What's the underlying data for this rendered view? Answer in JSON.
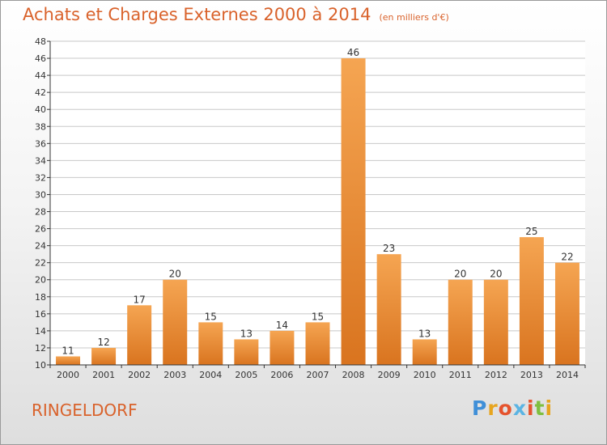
{
  "header": {
    "title": "Achats et Charges Externes 2000 à 2014",
    "unit": "(en milliers d'€)"
  },
  "footer": {
    "city": "RINGELDORF",
    "brand_letters": [
      "P",
      "r",
      "o",
      "x",
      "i",
      "t",
      "i"
    ],
    "brand_colors": [
      "#3f8fd8",
      "#e7a51f",
      "#e5532d",
      "#5bb4e3",
      "#e5532d",
      "#7fbf3f",
      "#e7a51f"
    ]
  },
  "colors": {
    "bar_light": "#f5a552",
    "bar_dark": "#d9741f",
    "grid": "#c8c8c8",
    "axis": "#333333",
    "text": "#333333"
  },
  "chart_data": {
    "type": "bar",
    "categories": [
      "2000",
      "2001",
      "2002",
      "2003",
      "2004",
      "2005",
      "2006",
      "2007",
      "2008",
      "2009",
      "2010",
      "2011",
      "2012",
      "2013",
      "2014"
    ],
    "values": [
      11,
      12,
      17,
      20,
      15,
      13,
      14,
      15,
      46,
      23,
      13,
      20,
      20,
      25,
      22
    ],
    "data_labels": [
      "11",
      "12",
      "17",
      "20",
      "15",
      "13",
      "14",
      "15",
      "46",
      "23",
      "13",
      "20",
      "20",
      "25",
      "22"
    ],
    "y_ticks": [
      10,
      12,
      14,
      16,
      18,
      20,
      22,
      24,
      26,
      28,
      30,
      32,
      34,
      36,
      38,
      40,
      42,
      44,
      46,
      48
    ],
    "ylim": [
      10,
      48
    ],
    "grid": true,
    "title": "Achats et Charges Externes 2000 à 2014",
    "xlabel": "",
    "ylabel": ""
  }
}
